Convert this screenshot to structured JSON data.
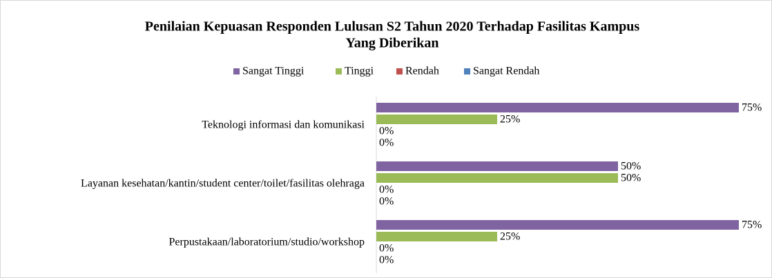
{
  "chart_data": {
    "type": "bar",
    "orientation": "horizontal",
    "title": [
      "Penilaian Kepuasan Responden Lulusan S2 Tahun 2020 Terhadap Fasilitas Kampus",
      "Yang Diberikan"
    ],
    "categories": [
      "Teknologi informasi dan komunikasi",
      "Layanan kesehatan/kantin/student center/toilet/fasilitas olehraga",
      "Perpustakaan/laboratorium/studio/workshop"
    ],
    "series": [
      {
        "name": "Sangat Tinggi",
        "color": "#8064a2",
        "values": [
          75,
          50,
          75
        ],
        "value_labels": [
          "75%",
          "50%",
          "75%"
        ]
      },
      {
        "name": "Tinggi",
        "color": "#9bbb59",
        "values": [
          25,
          50,
          25
        ],
        "value_labels": [
          "25%",
          "50%",
          "25%"
        ]
      },
      {
        "name": "Rendah",
        "color": "#c0504d",
        "values": [
          0,
          0,
          0
        ],
        "value_labels": [
          "0%",
          "0%",
          "0%"
        ]
      },
      {
        "name": "Sangat Rendah",
        "color": "#4f81bd",
        "values": [
          0,
          0,
          0
        ],
        "value_labels": [
          "0%",
          "0%",
          "0%"
        ]
      }
    ],
    "legend": "top"
  }
}
